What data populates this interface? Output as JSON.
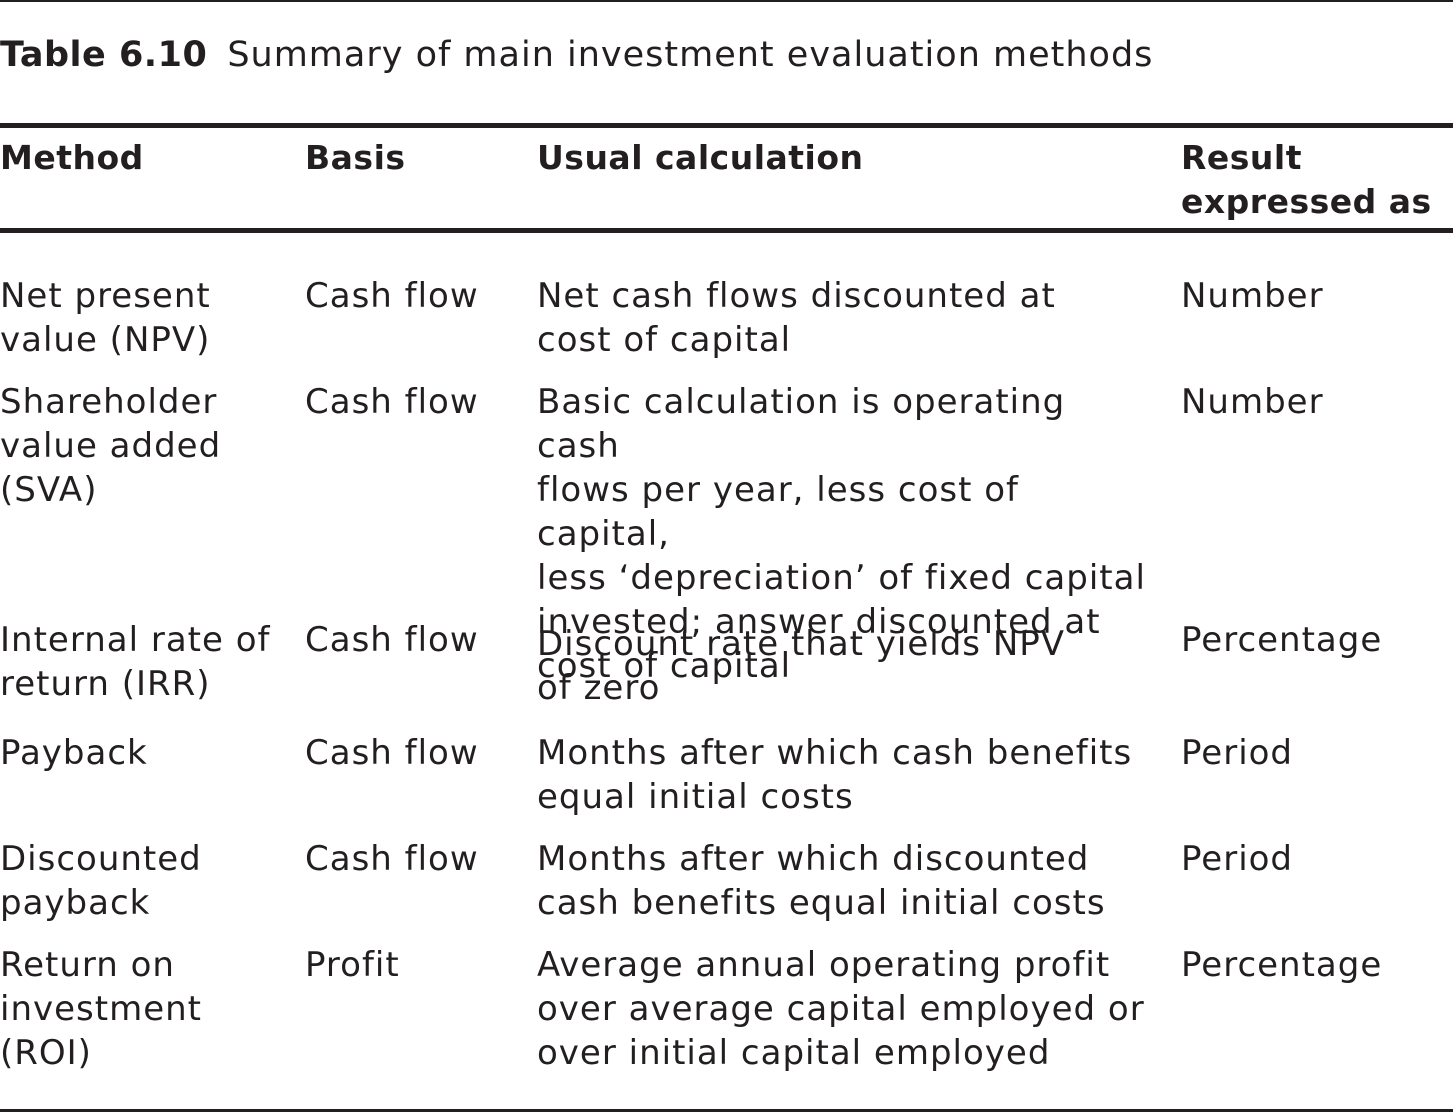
{
  "caption": {
    "number": "Table 6.10",
    "title": "Summary of main investment evaluation methods"
  },
  "columns": {
    "method": "Method",
    "basis": "Basis",
    "calculation": "Usual calculation",
    "result": "Result\nexpressed as"
  },
  "rows": [
    {
      "method": "Net present\nvalue (NPV)",
      "basis": "Cash flow",
      "calculation": "Net cash flows discounted at\ncost of capital",
      "result": "Number"
    },
    {
      "method": "Shareholder\nvalue added\n(SVA)",
      "basis": "Cash flow",
      "calculation": "Basic calculation is operating cash\nflows per year, less cost of capital,\nless ‘depreciation’ of fixed capital\ninvested; answer discounted at\ncost of capital",
      "result": "Number"
    },
    {
      "method": "Internal rate of\nreturn (IRR)",
      "basis": "Cash flow",
      "calculation": "Discount rate that yields NPV\nof zero",
      "result": "Percentage"
    },
    {
      "method": "Payback",
      "basis": "Cash flow",
      "calculation": "Months after which cash benefits\nequal initial costs",
      "result": "Period"
    },
    {
      "method": "Discounted\npayback",
      "basis": "Cash flow",
      "calculation": "Months after which discounted\ncash benefits equal initial costs",
      "result": "Period"
    },
    {
      "method": "Return on\ninvestment\n(ROI)",
      "basis": "Profit",
      "calculation": "Average annual operating profit\nover average capital employed or\nover initial capital employed",
      "result": "Percentage"
    }
  ]
}
